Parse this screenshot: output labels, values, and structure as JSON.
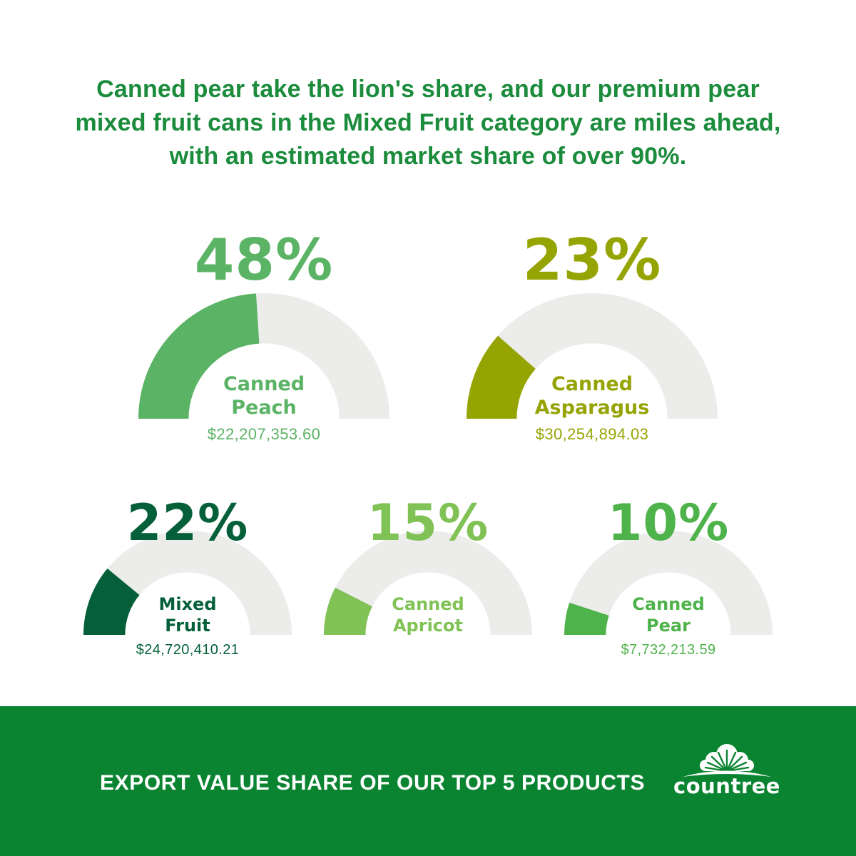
{
  "headline": "Canned pear take the lion's share, and our premium pear mixed fruit cans in the Mixed Fruit category are miles ahead, with an estimated market share of over 90%.",
  "colors": {
    "headline_green": "#1B8B3C",
    "track_gray": "#ECECEA",
    "background": "#FFFFFF",
    "footer_green": "#0A8431",
    "footer_text": "#FFFFFF"
  },
  "chart_data": {
    "type": "gauge",
    "layout": "five semicircular donut gauges, two on top row, three on bottom row",
    "title": "EXPORT VALUE SHARE OF OUR TOP 5 PRODUCTS",
    "range": [
      0,
      100
    ],
    "series": [
      {
        "name": "Canned Peach",
        "name_line1": "Canned",
        "name_line2": "Peach",
        "pct": 48,
        "pct_label": "48%",
        "value": "$22,207,353.60",
        "color": "#5BB365"
      },
      {
        "name": "Canned Asparagus",
        "name_line1": "Canned",
        "name_line2": "Asparagus",
        "pct": 23,
        "pct_label": "23%",
        "value": "$30,254,894.03",
        "color": "#96A403"
      },
      {
        "name": "Mixed Fruit",
        "name_line1": "Mixed",
        "name_line2": "Fruit",
        "pct": 22,
        "pct_label": "22%",
        "value": "$24,720,410.21",
        "color": "#05603A"
      },
      {
        "name": "Canned Apricot",
        "name_line1": "Canned",
        "name_line2": "Apricot",
        "pct": 15,
        "pct_label": "15%",
        "value": "",
        "color": "#80C255"
      },
      {
        "name": "Canned Pear",
        "name_line1": "Canned",
        "name_line2": "Pear",
        "pct": 10,
        "pct_label": "10%",
        "value": "$7,732,213.59",
        "color": "#4FB34C"
      }
    ]
  },
  "footer": {
    "title": "EXPORT VALUE SHARE OF OUR TOP 5 PRODUCTS",
    "brand": "countree"
  }
}
